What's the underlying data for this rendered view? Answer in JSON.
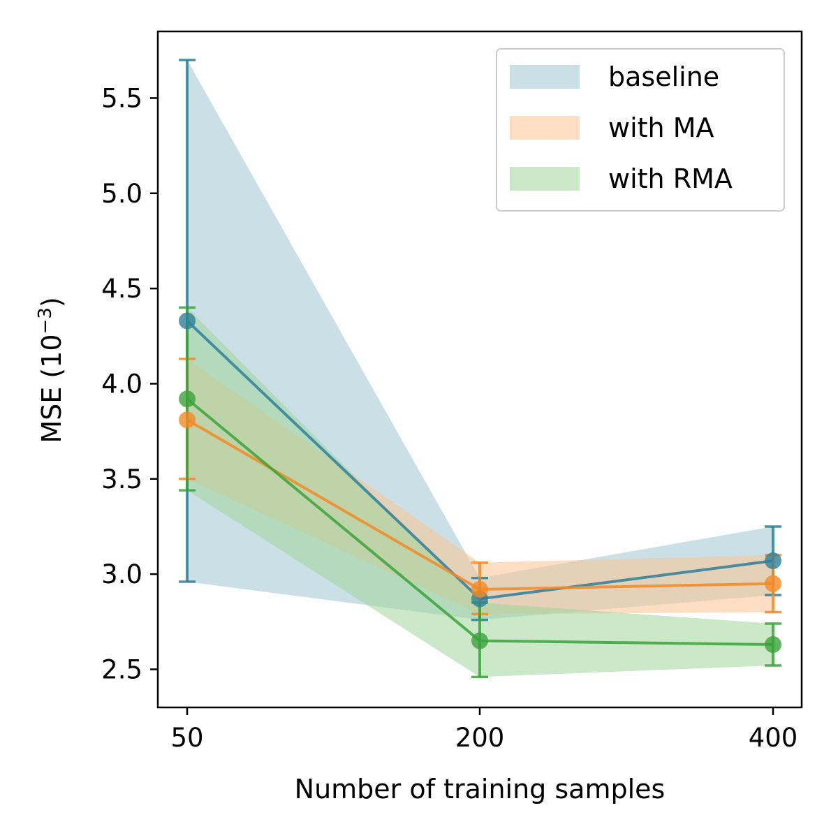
{
  "chart_data": {
    "type": "line",
    "title": "",
    "xlabel": "Number of training samples",
    "ylabel": "MSE (10",
    "ylabel_exponent": "−3",
    "ylabel_close": ")",
    "x": [
      50,
      200,
      400
    ],
    "x_tick_labels": [
      "50",
      "200",
      "400"
    ],
    "ylim": [
      2.3,
      5.85
    ],
    "y_ticks": [
      2.5,
      3.0,
      3.5,
      4.0,
      4.5,
      5.0,
      5.5
    ],
    "y_tick_labels": [
      "2.5",
      "3.0",
      "3.5",
      "4.0",
      "4.5",
      "5.0",
      "5.5"
    ],
    "legend_position": "top-right",
    "grid": false,
    "series": [
      {
        "name": "baseline",
        "line_color": "#2e7f99",
        "band_color": "#9fc6d2",
        "values": [
          4.33,
          2.87,
          3.07
        ],
        "lower": [
          2.96,
          2.76,
          2.89
        ],
        "upper": [
          5.7,
          2.98,
          3.25
        ]
      },
      {
        "name": "with MA",
        "line_color": "#f28a24",
        "band_color": "#fcc391",
        "values": [
          3.81,
          2.92,
          2.95
        ],
        "lower": [
          3.5,
          2.79,
          2.8
        ],
        "upper": [
          4.13,
          3.06,
          3.1
        ]
      },
      {
        "name": "with RMA",
        "line_color": "#3aa33a",
        "band_color": "#a1d69b",
        "values": [
          3.92,
          2.65,
          2.63
        ],
        "lower": [
          3.44,
          2.46,
          2.52
        ],
        "upper": [
          4.4,
          2.85,
          2.74
        ]
      }
    ]
  }
}
